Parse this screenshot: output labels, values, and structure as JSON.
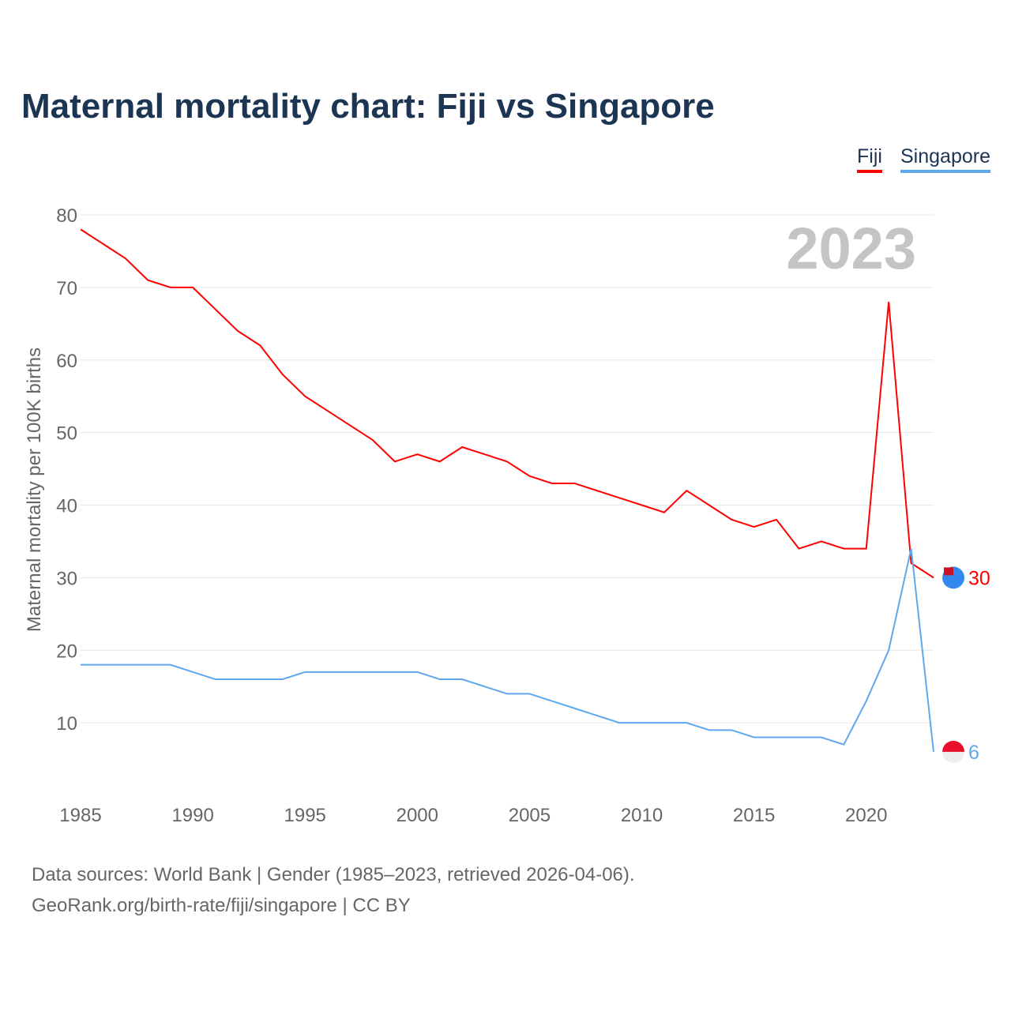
{
  "chart_data": {
    "type": "line",
    "title": "Maternal mortality chart: Fiji vs Singapore",
    "xlabel": "",
    "ylabel": "Maternal mortality per 100K births",
    "year_label": "2023",
    "xlim": [
      1985,
      2023
    ],
    "ylim": [
      0,
      80
    ],
    "xticks": [
      1985,
      1990,
      1995,
      2000,
      2005,
      2010,
      2015,
      2020
    ],
    "yticks": [
      10,
      20,
      30,
      40,
      50,
      60,
      70,
      80
    ],
    "x": [
      1985,
      1986,
      1987,
      1988,
      1989,
      1990,
      1991,
      1992,
      1993,
      1994,
      1995,
      1996,
      1997,
      1998,
      1999,
      2000,
      2001,
      2002,
      2003,
      2004,
      2005,
      2006,
      2007,
      2008,
      2009,
      2010,
      2011,
      2012,
      2013,
      2014,
      2015,
      2016,
      2017,
      2018,
      2019,
      2020,
      2021,
      2022,
      2023
    ],
    "series": [
      {
        "name": "Fiji",
        "color": "#ff0000",
        "end_label": "30",
        "values": [
          78,
          76,
          74,
          71,
          70,
          70,
          67,
          64,
          62,
          58,
          55,
          53,
          51,
          49,
          46,
          47,
          46,
          48,
          47,
          46,
          44,
          43,
          43,
          42,
          41,
          40,
          39,
          42,
          40,
          38,
          37,
          38,
          34,
          35,
          34,
          34,
          68,
          32,
          30
        ]
      },
      {
        "name": "Singapore",
        "color": "#5ea8ec",
        "end_label": "6",
        "values": [
          18,
          18,
          18,
          18,
          18,
          17,
          16,
          16,
          16,
          16,
          17,
          17,
          17,
          17,
          17,
          17,
          16,
          16,
          15,
          14,
          14,
          13,
          12,
          11,
          10,
          10,
          10,
          10,
          9,
          9,
          8,
          8,
          8,
          8,
          7,
          13,
          20,
          34,
          6
        ]
      }
    ],
    "legend": "top-right",
    "grid": true
  },
  "source": {
    "line1": "Data sources: World Bank | Gender (1985–2023, retrieved 2026-04-06).",
    "line2": "GeoRank.org/birth-rate/fiji/singapore | CC BY"
  }
}
